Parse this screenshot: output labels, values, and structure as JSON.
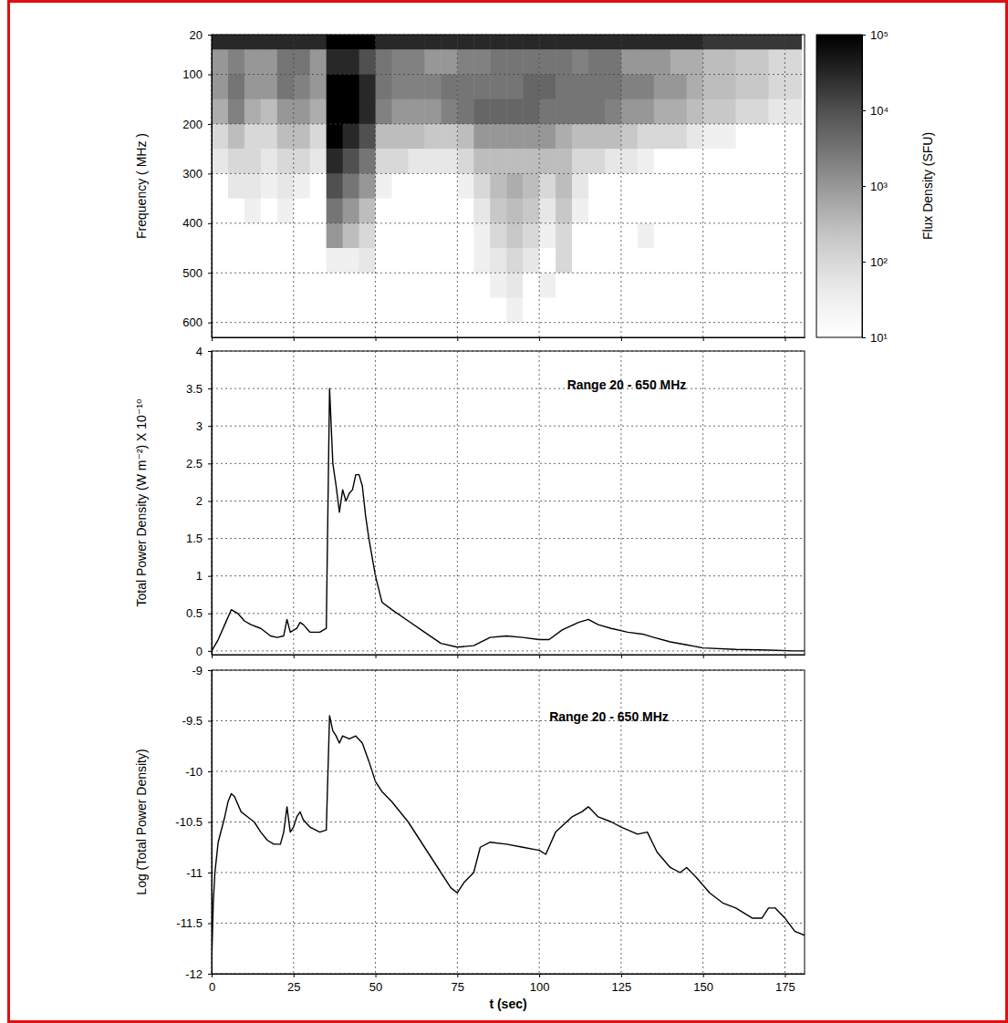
{
  "chart_data": [
    {
      "type": "heatmap",
      "y_label": "Frequency ( MHz )",
      "xlim": [
        0,
        181
      ],
      "ylim": [
        630,
        20
      ],
      "xticks": [
        0,
        25,
        50,
        75,
        100,
        125,
        150,
        175
      ],
      "yticks": [
        20,
        100,
        200,
        300,
        400,
        500,
        600
      ],
      "tick_labels": "y",
      "grid": true,
      "log": true,
      "x_edges": [
        0,
        5,
        10,
        15,
        20,
        25,
        30,
        35,
        40,
        45,
        50,
        55,
        60,
        65,
        70,
        75,
        80,
        85,
        90,
        95,
        100,
        105,
        110,
        115,
        120,
        125,
        130,
        135,
        140,
        145,
        150,
        155,
        160,
        165,
        170,
        175,
        180
      ],
      "y_edges": [
        20,
        50,
        100,
        150,
        200,
        250,
        300,
        350,
        400,
        450,
        500,
        550,
        600,
        630
      ],
      "cells": [
        [
          30000,
          30000,
          30000,
          30000,
          30000,
          30000,
          30000,
          100000,
          100000,
          100000,
          30000,
          30000,
          30000,
          30000,
          30000,
          30000,
          30000,
          30000,
          30000,
          30000,
          30000,
          30000,
          30000,
          30000,
          30000,
          30000,
          30000,
          30000,
          30000,
          30000,
          20000,
          20000,
          20000,
          20000,
          20000,
          20000
        ],
        [
          1000,
          2000,
          1000,
          1000,
          3000,
          3000,
          1000,
          30000,
          30000,
          10000,
          3000,
          2000,
          2000,
          1000,
          1000,
          2000,
          2000,
          3000,
          3000,
          3000,
          3000,
          3000,
          2000,
          3000,
          3000,
          1000,
          1000,
          1000,
          500,
          500,
          300,
          300,
          200,
          200,
          100,
          100
        ],
        [
          1000,
          3000,
          1000,
          1000,
          3000,
          2000,
          1000,
          100000,
          100000,
          30000,
          3000,
          2000,
          2000,
          2000,
          3000,
          3000,
          3000,
          3000,
          3000,
          5000,
          5000,
          3000,
          3000,
          3000,
          3000,
          2000,
          2000,
          1000,
          1000,
          500,
          300,
          300,
          200,
          200,
          100,
          100
        ],
        [
          500,
          2000,
          500,
          300,
          1000,
          1000,
          500,
          100000,
          100000,
          30000,
          2000,
          1000,
          1000,
          1000,
          2000,
          3000,
          5000,
          5000,
          5000,
          5000,
          3000,
          3000,
          3000,
          3000,
          2000,
          1000,
          1000,
          500,
          500,
          300,
          200,
          200,
          100,
          100,
          50,
          50
        ],
        [
          100,
          300,
          100,
          100,
          300,
          300,
          100,
          100000,
          30000,
          10000,
          300,
          300,
          300,
          200,
          200,
          300,
          1000,
          1000,
          1000,
          1000,
          1000,
          500,
          300,
          300,
          300,
          200,
          100,
          100,
          100,
          50,
          30,
          30,
          10,
          10,
          10,
          10
        ],
        [
          50,
          100,
          100,
          50,
          100,
          100,
          50,
          30000,
          10000,
          3000,
          100,
          100,
          50,
          50,
          50,
          100,
          300,
          300,
          300,
          300,
          300,
          300,
          100,
          100,
          50,
          50,
          30,
          10,
          10,
          10,
          10,
          10,
          10,
          10,
          10,
          10
        ],
        [
          10,
          50,
          50,
          30,
          50,
          30,
          10,
          10000,
          3000,
          1000,
          30,
          10,
          10,
          10,
          10,
          30,
          100,
          300,
          500,
          300,
          100,
          300,
          50,
          10,
          10,
          10,
          10,
          10,
          10,
          10,
          10,
          10,
          10,
          10,
          10,
          10
        ],
        [
          10,
          10,
          30,
          10,
          30,
          10,
          10,
          3000,
          1000,
          300,
          10,
          10,
          10,
          10,
          10,
          10,
          50,
          200,
          300,
          200,
          50,
          200,
          30,
          10,
          10,
          10,
          10,
          10,
          10,
          10,
          10,
          10,
          10,
          10,
          10,
          10
        ],
        [
          10,
          10,
          10,
          10,
          10,
          10,
          10,
          1000,
          300,
          100,
          10,
          10,
          10,
          10,
          10,
          10,
          30,
          100,
          200,
          100,
          30,
          100,
          10,
          10,
          10,
          10,
          30,
          10,
          10,
          10,
          10,
          10,
          10,
          10,
          10,
          10
        ],
        [
          10,
          10,
          10,
          10,
          10,
          10,
          10,
          30,
          30,
          50,
          10,
          10,
          10,
          10,
          10,
          10,
          30,
          50,
          100,
          50,
          10,
          100,
          10,
          10,
          10,
          10,
          10,
          10,
          10,
          10,
          10,
          10,
          10,
          10,
          10,
          10
        ],
        [
          10,
          10,
          10,
          10,
          10,
          10,
          10,
          10,
          10,
          10,
          10,
          10,
          10,
          10,
          10,
          10,
          10,
          30,
          50,
          10,
          30,
          10,
          10,
          10,
          10,
          10,
          10,
          10,
          10,
          10,
          10,
          10,
          10,
          10,
          10,
          10
        ],
        [
          10,
          10,
          10,
          10,
          10,
          10,
          10,
          10,
          10,
          10,
          10,
          10,
          10,
          10,
          10,
          10,
          10,
          10,
          30,
          10,
          10,
          10,
          10,
          10,
          10,
          10,
          10,
          10,
          10,
          10,
          10,
          10,
          10,
          10,
          10,
          10
        ],
        [
          10,
          10,
          10,
          10,
          10,
          10,
          10,
          10,
          10,
          10,
          10,
          10,
          10,
          10,
          10,
          10,
          10,
          10,
          10,
          10,
          10,
          10,
          10,
          10,
          10,
          10,
          10,
          10,
          10,
          10,
          10,
          10,
          10,
          10,
          10,
          10
        ]
      ],
      "colorbar_label": "Flux Density (SFU)",
      "colorbar_range": [
        10,
        100000
      ],
      "colorbar_ticks": [
        {
          "value": 10,
          "label": "10¹"
        },
        {
          "value": 100,
          "label": "10²"
        },
        {
          "value": 1000,
          "label": "10³"
        },
        {
          "value": 10000,
          "label": "10⁴"
        },
        {
          "value": 100000,
          "label": "10⁵"
        }
      ]
    },
    {
      "type": "line",
      "y_label": "Total Power Density  (W m⁻²) X 10⁻¹⁰",
      "annotation": "Range  20 - 650 MHz",
      "xlim": [
        0,
        181
      ],
      "ylim": [
        -0.05,
        4
      ],
      "xticks": [
        0,
        25,
        50,
        75,
        100,
        125,
        150,
        175
      ],
      "yticks": [
        0,
        0.5,
        1,
        1.5,
        2,
        2.5,
        3,
        3.5,
        4
      ],
      "tick_labels": "y",
      "grid": true,
      "color": "#000000",
      "x": [
        0,
        2,
        4,
        6,
        8,
        10,
        12,
        15,
        18,
        20,
        22,
        23,
        24,
        26,
        27,
        28,
        30,
        33,
        35,
        36,
        37,
        38,
        39,
        40,
        41,
        42,
        43,
        44,
        45,
        46,
        47,
        48,
        50,
        52,
        55,
        60,
        65,
        70,
        75,
        80,
        85,
        90,
        95,
        100,
        103,
        107,
        112,
        115,
        118,
        122,
        127,
        132,
        135,
        140,
        145,
        150,
        160,
        170,
        178,
        181
      ],
      "values": [
        0,
        0.15,
        0.35,
        0.55,
        0.5,
        0.4,
        0.35,
        0.3,
        0.2,
        0.18,
        0.2,
        0.42,
        0.25,
        0.3,
        0.38,
        0.35,
        0.25,
        0.25,
        0.3,
        3.5,
        2.5,
        2.2,
        1.85,
        2.15,
        2,
        2.1,
        2.15,
        2.35,
        2.35,
        2.2,
        1.8,
        1.5,
        1,
        0.65,
        0.55,
        0.4,
        0.25,
        0.1,
        0.05,
        0.07,
        0.18,
        0.2,
        0.18,
        0.15,
        0.15,
        0.28,
        0.38,
        0.42,
        0.35,
        0.3,
        0.25,
        0.22,
        0.18,
        0.12,
        0.08,
        0.04,
        0.02,
        0.01,
        0,
        0
      ]
    },
    {
      "type": "line",
      "y_label": "Log (Total Power Density)",
      "x_label": "t  (sec)",
      "annotation": "Range  20 - 650 MHz",
      "xlim": [
        0,
        181
      ],
      "ylim": [
        -12,
        -9
      ],
      "xticks": [
        0,
        25,
        50,
        75,
        100,
        125,
        150,
        175
      ],
      "yticks": [
        -12,
        -11.5,
        -11,
        -10.5,
        -10,
        -9.5,
        -9
      ],
      "grid": true,
      "color": "#000000",
      "x": [
        0,
        0.5,
        1,
        2,
        4,
        5,
        6,
        7,
        9,
        11,
        13,
        15,
        17,
        19,
        21,
        22,
        23,
        24,
        25,
        26,
        27,
        28,
        30,
        33,
        35,
        36,
        37,
        38,
        39,
        40,
        42,
        44,
        46,
        48,
        50,
        52,
        55,
        60,
        65,
        70,
        73,
        75,
        77,
        80,
        82,
        85,
        90,
        95,
        100,
        102,
        105,
        110,
        113,
        115,
        118,
        122,
        125,
        130,
        133,
        136,
        140,
        143,
        145,
        148,
        152,
        156,
        160,
        165,
        168,
        170,
        172,
        175,
        178,
        181
      ],
      "values": [
        -11.9,
        -11.3,
        -11,
        -10.7,
        -10.45,
        -10.3,
        -10.22,
        -10.25,
        -10.4,
        -10.45,
        -10.5,
        -10.6,
        -10.68,
        -10.72,
        -10.72,
        -10.6,
        -10.35,
        -10.6,
        -10.55,
        -10.45,
        -10.4,
        -10.48,
        -10.55,
        -10.6,
        -10.58,
        -9.45,
        -9.6,
        -9.65,
        -9.72,
        -9.65,
        -9.68,
        -9.65,
        -9.72,
        -9.9,
        -10.1,
        -10.2,
        -10.3,
        -10.5,
        -10.75,
        -11,
        -11.15,
        -11.2,
        -11.1,
        -11,
        -10.75,
        -10.7,
        -10.72,
        -10.75,
        -10.78,
        -10.82,
        -10.6,
        -10.45,
        -10.4,
        -10.35,
        -10.45,
        -10.5,
        -10.55,
        -10.62,
        -10.6,
        -10.8,
        -10.95,
        -11,
        -10.95,
        -11.05,
        -11.2,
        -11.3,
        -11.35,
        -11.45,
        -11.45,
        -11.35,
        -11.35,
        -11.45,
        -11.58,
        -11.62
      ]
    }
  ]
}
